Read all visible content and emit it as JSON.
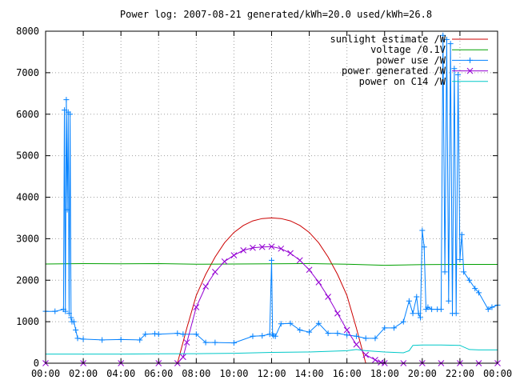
{
  "chart_data": {
    "type": "line",
    "title": "Power log: 2007-08-21 generated/kWh=20.0 used/kWh=26.8",
    "xlabel": "",
    "ylabel": "",
    "xlim": [
      0,
      24
    ],
    "ylim": [
      0,
      8000
    ],
    "x_ticks": [
      "00:00",
      "02:00",
      "04:00",
      "06:00",
      "08:00",
      "10:00",
      "12:00",
      "14:00",
      "16:00",
      "18:00",
      "20:00",
      "22:00",
      "00:00"
    ],
    "y_ticks": [
      "0",
      "1000",
      "2000",
      "3000",
      "4000",
      "5000",
      "6000",
      "7000",
      "8000"
    ],
    "grid": true,
    "legend_position": "top-right",
    "series": [
      {
        "name": "sunlight estimate /W",
        "color": "#cc0000",
        "marker": "none",
        "x": [
          7.0,
          7.5,
          8.0,
          8.5,
          9.0,
          9.5,
          10.0,
          10.5,
          11.0,
          11.5,
          12.0,
          12.5,
          13.0,
          13.5,
          14.0,
          14.5,
          15.0,
          15.5,
          16.0,
          16.5,
          17.0
        ],
        "y": [
          0,
          850,
          1630,
          2140,
          2560,
          2900,
          3150,
          3320,
          3430,
          3485,
          3500,
          3485,
          3430,
          3320,
          3150,
          2900,
          2560,
          2140,
          1630,
          850,
          0
        ]
      },
      {
        "name": "voltage /0.1V",
        "color": "#00a000",
        "marker": "none",
        "x": [
          0,
          2,
          4,
          6,
          8,
          10,
          12,
          14,
          16,
          18,
          20,
          22,
          24
        ],
        "y": [
          2390,
          2400,
          2395,
          2400,
          2385,
          2390,
          2395,
          2400,
          2385,
          2360,
          2375,
          2380,
          2380
        ]
      },
      {
        "name": "power use /W",
        "color": "#0080ff",
        "marker": "plus",
        "x": [
          0.0,
          0.5,
          0.95,
          1.0,
          1.05,
          1.1,
          1.15,
          1.2,
          1.25,
          1.3,
          1.35,
          1.4,
          1.5,
          1.6,
          1.7,
          2.0,
          3.0,
          4.0,
          5.0,
          5.3,
          5.8,
          6.0,
          7.0,
          7.3,
          8.0,
          8.5,
          9.0,
          10.0,
          11.0,
          11.5,
          11.9,
          12.0,
          12.05,
          12.1,
          12.2,
          12.5,
          13.0,
          13.5,
          14.0,
          14.5,
          15.0,
          15.5,
          16.0,
          16.5,
          17.0,
          17.5,
          18.0,
          18.5,
          19.0,
          19.3,
          19.5,
          19.7,
          19.8,
          19.9,
          20.0,
          20.1,
          20.2,
          20.3,
          20.5,
          20.8,
          21.0,
          21.1,
          21.2,
          21.3,
          21.4,
          21.5,
          21.6,
          21.7,
          21.8,
          21.9,
          22.0,
          22.1,
          22.2,
          22.5,
          22.8,
          23.0,
          23.5,
          23.7,
          24.0
        ],
        "y": [
          1250,
          1250,
          1300,
          6100,
          1250,
          6350,
          3700,
          6050,
          1200,
          6000,
          1100,
          1000,
          1000,
          800,
          600,
          580,
          560,
          570,
          560,
          700,
          710,
          700,
          720,
          700,
          700,
          500,
          500,
          490,
          650,
          660,
          700,
          2480,
          700,
          660,
          650,
          950,
          960,
          800,
          750,
          960,
          720,
          720,
          680,
          650,
          600,
          600,
          850,
          850,
          1000,
          1500,
          1200,
          1600,
          1200,
          1100,
          3200,
          2800,
          1300,
          1350,
          1300,
          1300,
          1300,
          7900,
          2200,
          7800,
          1500,
          7700,
          1200,
          7100,
          1200,
          6950,
          2500,
          3100,
          2200,
          2000,
          1800,
          1700,
          1300,
          1350,
          1400
        ]
      },
      {
        "name": "power generated /W",
        "color": "#9400d3",
        "marker": "cross",
        "x": [
          0.0,
          2.0,
          4.0,
          6.0,
          7.0,
          7.3,
          7.5,
          8.0,
          8.5,
          9.0,
          9.5,
          10.0,
          10.5,
          11.0,
          11.5,
          12.0,
          12.5,
          13.0,
          13.5,
          14.0,
          14.5,
          15.0,
          15.5,
          16.0,
          16.5,
          17.0,
          17.5,
          17.8,
          18.0,
          19.0,
          20.0,
          21.0,
          22.0,
          23.0,
          24.0
        ],
        "y": [
          0,
          0,
          0,
          0,
          0,
          150,
          500,
          1350,
          1850,
          2200,
          2450,
          2600,
          2720,
          2780,
          2800,
          2810,
          2760,
          2650,
          2480,
          2250,
          1950,
          1600,
          1200,
          800,
          450,
          200,
          80,
          20,
          0,
          0,
          0,
          0,
          0,
          0,
          0
        ]
      },
      {
        "name": "power on C14 /W",
        "color": "#00c8c8",
        "marker": "none",
        "x": [
          0.0,
          2.0,
          4.0,
          6.0,
          8.0,
          10.0,
          12.0,
          14.0,
          16.0,
          16.5,
          17.0,
          18.0,
          19.0,
          19.3,
          19.5,
          20.0,
          21.0,
          22.0,
          22.5,
          23.0,
          24.0
        ],
        "y": [
          220,
          220,
          220,
          225,
          230,
          240,
          260,
          270,
          300,
          330,
          300,
          270,
          250,
          300,
          430,
          440,
          440,
          430,
          330,
          320,
          320
        ]
      }
    ]
  }
}
